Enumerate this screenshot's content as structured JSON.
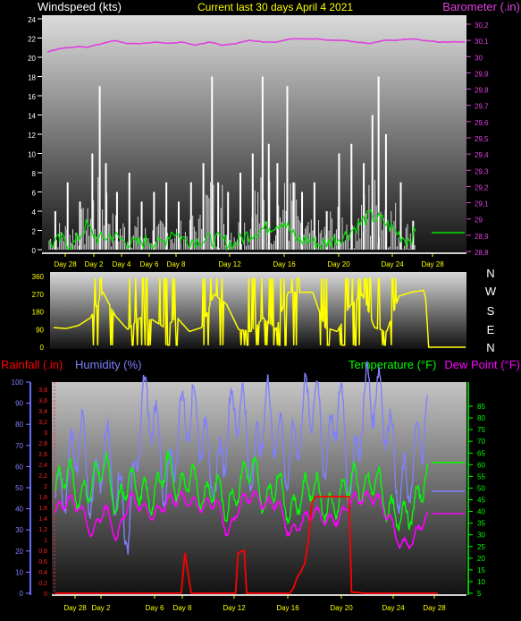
{
  "header": {
    "title": "Current last 30 days April 4 2021"
  },
  "colors": {
    "wind": "#ffffff",
    "gust_avg": "#00e000",
    "barometer": "#e040e0",
    "direction": "#ffff00",
    "rain": "#ff0000",
    "humidity": "#8080ff",
    "temperature": "#00ff00",
    "dewpoint": "#ff00ff",
    "date_text": "#ffff00"
  },
  "x_ticks": [
    "Day 28",
    "Day 2",
    "Day 4",
    "Day 6",
    "Day 8",
    "Day 12",
    "Day 16",
    "Day 20",
    "Day 24",
    "Day 28"
  ],
  "x_ticks_bottom": [
    "Day 28",
    "Day 2",
    "Day 6",
    "Day 8",
    "Day 12",
    "Day 16",
    "Day 20",
    "Day 24",
    "Day 28"
  ],
  "chart_data": [
    {
      "type": "line",
      "name": "wind_barometer",
      "ylabel_left": "Windspeed (kts)",
      "ylabel_right": "Barometer (.in)",
      "ylim_left": [
        0,
        24
      ],
      "ylim_right": [
        28.8,
        30.3
      ],
      "yticks_left": [
        "0",
        "2",
        "4",
        "6",
        "8",
        "10",
        "12",
        "14",
        "16",
        "18",
        "20",
        "22",
        "24"
      ],
      "yticks_right": [
        "28,8",
        "28,9",
        "29",
        "29,1",
        "29,2",
        "29,3",
        "29,4",
        "29,5",
        "29,6",
        "29,7",
        "29,8",
        "29,9",
        "30",
        "30,1",
        "30,2"
      ],
      "x_range_days": [
        0,
        31
      ],
      "series": [
        {
          "name": "Barometer",
          "axis": "right",
          "x": [
            0,
            1,
            2,
            3,
            4,
            5,
            6,
            7,
            8,
            9,
            10,
            11,
            12,
            13,
            14,
            15,
            16,
            17,
            18,
            19,
            20,
            21,
            22,
            23,
            24,
            25,
            26,
            27,
            28,
            29,
            30,
            31
          ],
          "y": [
            30.03,
            30.05,
            30.06,
            30.06,
            30.08,
            30.1,
            30.08,
            30.08,
            30.09,
            30.08,
            30.09,
            30.07,
            30.09,
            30.07,
            30.08,
            30.1,
            30.09,
            30.09,
            30.11,
            30.11,
            30.11,
            30.1,
            30.1,
            30.09,
            30.08,
            30.1,
            30.1,
            30.11,
            30.1,
            30.09,
            30.09,
            30.09
          ]
        },
        {
          "name": "Wind average",
          "axis": "left",
          "x": [
            0,
            1,
            2,
            3,
            4,
            5,
            6,
            7,
            8,
            9,
            10,
            11,
            12,
            13,
            14,
            15,
            16,
            17,
            18,
            19,
            20,
            21,
            22,
            23,
            24,
            25,
            26,
            27,
            28,
            29,
            30,
            31
          ],
          "y": [
            0.5,
            1,
            0.5,
            2.5,
            1,
            1.5,
            1,
            0.5,
            1,
            0.5,
            2,
            1,
            1,
            1,
            1,
            0.5,
            1.5,
            2,
            2.5,
            3,
            1,
            1,
            0.5,
            1,
            1.5,
            2.5,
            3.5,
            3,
            2,
            1,
            2,
            2
          ]
        }
      ],
      "wind_peaks": [
        {
          "day": 0.5,
          "kts": 4
        },
        {
          "day": 1.5,
          "kts": 7
        },
        {
          "day": 2.5,
          "kts": 5
        },
        {
          "day": 3.5,
          "kts": 10
        },
        {
          "day": 4.1,
          "kts": 17
        },
        {
          "day": 4.6,
          "kts": 9
        },
        {
          "day": 5.5,
          "kts": 6
        },
        {
          "day": 6.5,
          "kts": 8
        },
        {
          "day": 7.5,
          "kts": 5
        },
        {
          "day": 8.5,
          "kts": 6
        },
        {
          "day": 9.5,
          "kts": 7
        },
        {
          "day": 10.5,
          "kts": 5
        },
        {
          "day": 11.5,
          "kts": 7
        },
        {
          "day": 12.5,
          "kts": 9
        },
        {
          "day": 13.2,
          "kts": 18
        },
        {
          "day": 13.7,
          "kts": 7
        },
        {
          "day": 14.5,
          "kts": 6
        },
        {
          "day": 15.5,
          "kts": 8
        },
        {
          "day": 16.5,
          "kts": 10
        },
        {
          "day": 17.3,
          "kts": 18
        },
        {
          "day": 17.8,
          "kts": 11
        },
        {
          "day": 18.5,
          "kts": 9
        },
        {
          "day": 19.3,
          "kts": 17
        },
        {
          "day": 19.8,
          "kts": 7
        },
        {
          "day": 20.5,
          "kts": 6
        },
        {
          "day": 21.5,
          "kts": 7
        },
        {
          "day": 22.5,
          "kts": 4
        },
        {
          "day": 23.5,
          "kts": 10
        },
        {
          "day": 24.5,
          "kts": 11
        },
        {
          "day": 25.5,
          "kts": 9
        },
        {
          "day": 26.2,
          "kts": 14
        },
        {
          "day": 26.7,
          "kts": 18
        },
        {
          "day": 27.3,
          "kts": 12
        },
        {
          "day": 28.5,
          "kts": 7
        },
        {
          "day": 29.5,
          "kts": 3
        },
        {
          "day": 30.5,
          "kts": 0
        }
      ]
    },
    {
      "type": "line",
      "name": "wind_direction",
      "ylim": [
        0,
        360
      ],
      "yticks": [
        "0",
        "90",
        "180",
        "270",
        "360"
      ],
      "compass_labels": [
        "N",
        "W",
        "S",
        "E",
        "N"
      ],
      "series": [
        {
          "name": "Direction",
          "x": [
            0,
            1,
            2,
            3,
            4,
            5,
            6,
            7,
            8,
            9,
            10,
            11,
            12,
            13,
            14,
            15,
            16,
            17,
            18,
            19,
            20,
            21,
            22,
            23,
            24,
            25,
            26,
            27,
            28,
            29,
            30,
            31
          ],
          "y": [
            100,
            95,
            110,
            150,
            280,
            160,
            90,
            150,
            140,
            100,
            150,
            80,
            100,
            270,
            220,
            90,
            80,
            150,
            90,
            280,
            280,
            280,
            100,
            80,
            210,
            270,
            100,
            80,
            260,
            280,
            290,
            0
          ]
        }
      ]
    },
    {
      "type": "line",
      "name": "temp_humidity_rain",
      "ylabel_left_outer": "Rainfall (.in)",
      "ylabel_left_inner": "Humidity (%)",
      "ylabel_right": "Temperature (°F)",
      "ylabel_right2": "Dew Point (°F)",
      "ylim_rain": [
        0,
        3.8
      ],
      "ylim_humidity": [
        0,
        100
      ],
      "ylim_temp": [
        5,
        85
      ],
      "yticks_rain": [
        "0",
        "0,2",
        "0,4",
        "0,6",
        "0,8",
        "1",
        "1,2",
        "1,4",
        "1,6",
        "1,8",
        "2",
        "2,2",
        "2,4",
        "2,6",
        "2,8",
        "3",
        "3,2",
        "3,4",
        "3,6",
        "3,8"
      ],
      "yticks_humidity": [
        "0",
        "10",
        "20",
        "30",
        "40",
        "50",
        "60",
        "70",
        "80",
        "90",
        "100"
      ],
      "yticks_temp": [
        "5",
        "10",
        "15",
        "20",
        "25",
        "30",
        "35",
        "40",
        "45",
        "50",
        "55",
        "60",
        "65",
        "70",
        "75",
        "80",
        "85"
      ],
      "series": [
        {
          "name": "Humidity",
          "x": [
            0,
            1,
            2,
            3,
            4,
            5,
            6,
            7,
            8,
            9,
            10,
            11,
            12,
            13,
            14,
            15,
            16,
            17,
            18,
            19,
            20,
            21,
            22,
            23,
            24,
            25,
            26,
            27,
            28,
            29,
            30,
            31
          ],
          "y": [
            42,
            55,
            78,
            45,
            70,
            48,
            30,
            90,
            85,
            45,
            80,
            88,
            75,
            50,
            80,
            92,
            55,
            90,
            75,
            60,
            85,
            95,
            62,
            95,
            48,
            92,
            96,
            80,
            45,
            60,
            85,
            50
          ]
        },
        {
          "name": "Temperature",
          "x": [
            0,
            1,
            2,
            3,
            4,
            5,
            6,
            7,
            8,
            9,
            10,
            11,
            12,
            13,
            14,
            15,
            16,
            17,
            18,
            19,
            20,
            21,
            22,
            23,
            24,
            25,
            26,
            27,
            28,
            29,
            30,
            31
          ],
          "y": [
            50,
            58,
            45,
            52,
            62,
            40,
            55,
            48,
            45,
            62,
            48,
            56,
            45,
            52,
            40,
            53,
            60,
            42,
            55,
            38,
            48,
            52,
            40,
            45,
            55,
            48,
            55,
            40,
            38,
            40,
            55,
            55
          ]
        },
        {
          "name": "Dew Point",
          "x": [
            0,
            1,
            2,
            3,
            4,
            5,
            6,
            7,
            8,
            9,
            10,
            11,
            12,
            13,
            14,
            15,
            16,
            17,
            18,
            19,
            20,
            21,
            22,
            23,
            24,
            25,
            26,
            27,
            28,
            29,
            30,
            31
          ],
          "y": [
            40,
            45,
            42,
            30,
            42,
            28,
            46,
            42,
            38,
            44,
            46,
            44,
            42,
            45,
            30,
            44,
            47,
            43,
            44,
            30,
            36,
            40,
            36,
            37,
            45,
            46,
            46,
            38,
            25,
            28,
            38,
            36
          ]
        },
        {
          "name": "Rainfall",
          "x": [
            0,
            10.2,
            10.5,
            11.0,
            14.6,
            14.8,
            15.3,
            15.5,
            19.0,
            19.3,
            19.6,
            19.9,
            20.2,
            20.5,
            20.8,
            21.1,
            22.4,
            22.6,
            23.8,
            24.0,
            24.2,
            25.1,
            25.3,
            30.5,
            31
          ],
          "y": [
            0,
            0,
            0.75,
            0,
            0,
            0.75,
            0.8,
            0,
            0,
            0.1,
            0.3,
            0.4,
            0.55,
            0.95,
            1.7,
            1.8,
            1.8,
            1.8,
            1.8,
            0.02,
            0.02,
            0,
            0,
            0,
            0
          ]
        }
      ]
    }
  ]
}
